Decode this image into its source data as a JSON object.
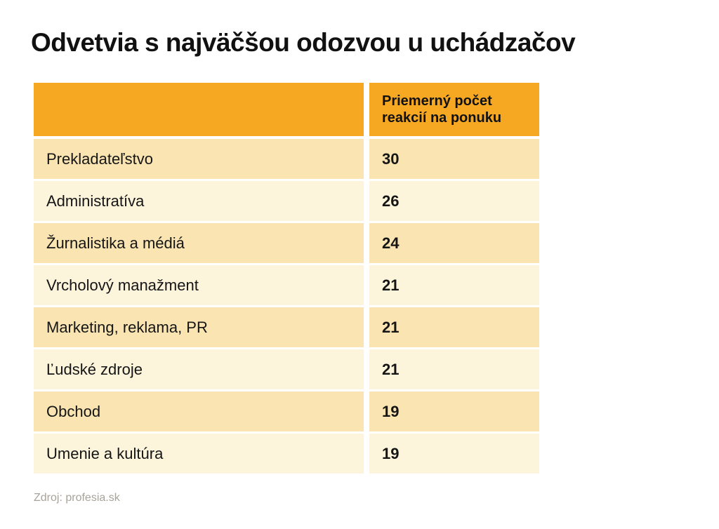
{
  "title": "Odvetvia s najväčšou odozvou u uchádzačov",
  "source": "Zdroj: profesia.sk",
  "table": {
    "industry_header": "",
    "value_header": "Priemerný počet reakcií na ponuku",
    "rows": [
      {
        "label": "Prekladateľstvo",
        "value": "30"
      },
      {
        "label": "Administratíva",
        "value": "26"
      },
      {
        "label": "Žurnalistika a médiá",
        "value": "24"
      },
      {
        "label": "Vrcholový manažment",
        "value": "21"
      },
      {
        "label": "Marketing, reklama, PR",
        "value": "21"
      },
      {
        "label": "Ľudské zdroje",
        "value": "21"
      },
      {
        "label": "Obchod",
        "value": "19"
      },
      {
        "label": "Umenie a kultúra",
        "value": "19"
      }
    ]
  },
  "colors": {
    "header_background": "#F7A823",
    "row_odd_background": "#FAE5B2",
    "row_even_background": "#FDF4DC",
    "text": "#111111",
    "source_text": "#A7A39A",
    "page_background": "#FFFFFF"
  },
  "chart_data": {
    "type": "table",
    "title": "Odvetvia s najväčšou odozvou u uchádzačov",
    "columns": [
      "",
      "Priemerný počet reakcií na ponuku"
    ],
    "categories": [
      "Prekladateľstvo",
      "Administratíva",
      "Žurnalistika a médiá",
      "Vrcholový manažment",
      "Marketing, reklama, PR",
      "Ľudské zdroje",
      "Obchod",
      "Umenie a kultúra"
    ],
    "values": [
      30,
      26,
      24,
      21,
      21,
      21,
      19,
      19
    ],
    "source": "Zdroj: profesia.sk",
    "layout": "header row orange, alternating cream data rows, values left-aligned bold"
  }
}
